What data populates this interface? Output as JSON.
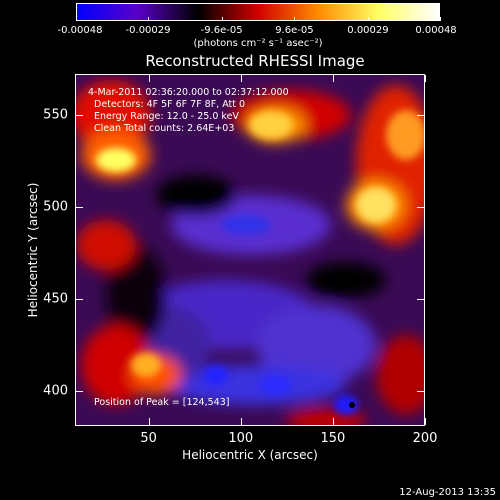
{
  "colorbar": {
    "tick_labels": [
      "-0.00048",
      "-0.00029",
      "-9.6e-05",
      "9.6e-05",
      "0.00029",
      "0.00048"
    ],
    "tick_values": [
      -0.00048,
      -0.00029,
      -9.6e-05,
      9.6e-05,
      0.00029,
      0.00048
    ],
    "range": [
      -0.00048,
      0.00048
    ],
    "units": "(photons cm⁻² s⁻¹ asec⁻²)",
    "colormap": [
      "#0000ff",
      "#5a00c8",
      "#000000",
      "#d20000",
      "#ff8c00",
      "#ffff64",
      "#ffffff"
    ]
  },
  "plot": {
    "title": "Reconstructed RHESSI Image",
    "xlabel": "Heliocentric X (arcsec)",
    "ylabel": "Heliocentric Y (arcsec)",
    "xrange": [
      10,
      200
    ],
    "yrange": [
      381,
      572
    ],
    "xticks": [
      50,
      100,
      150,
      200
    ],
    "yticks": [
      400,
      450,
      500,
      550
    ],
    "annotations": {
      "time": "4-Mar-2011 02:36:20.000 to 02:37:12.000",
      "detectors": "Detectors: 4F 5F 6F 7F 8F, Att 0",
      "energy": "Energy Range: 12.0 - 25.0 keV",
      "clean": "Clean    Total counts: 2.64E+03",
      "peak": "Position of Peak = [124,543]"
    }
  },
  "footer": {
    "date_stamp": "12-Aug-2013 13:35"
  }
}
